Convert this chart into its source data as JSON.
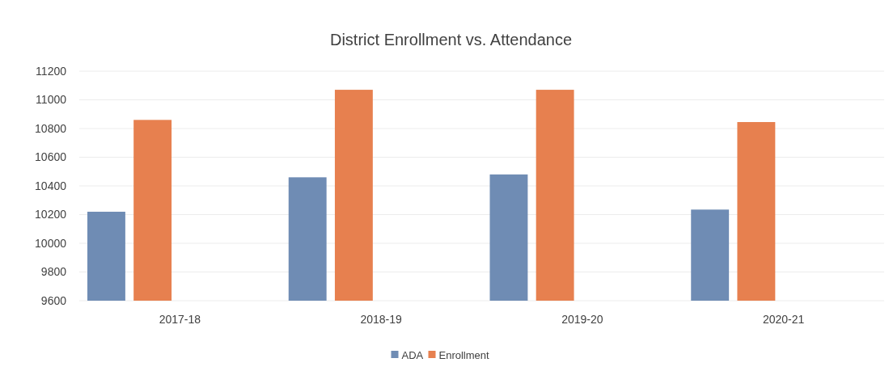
{
  "chart_data": {
    "type": "bar",
    "title": "District Enrollment vs. Attendance",
    "categories": [
      "2017-18",
      "2018-19",
      "2019-20",
      "2020-21"
    ],
    "series": [
      {
        "name": "ADA",
        "color": "#6f8cb4",
        "values": [
          10220,
          10460,
          10480,
          10235
        ]
      },
      {
        "name": "Enrollment",
        "color": "#e7804f",
        "values": [
          10860,
          11070,
          11070,
          10845
        ]
      }
    ],
    "ylim": [
      9600,
      11200
    ],
    "yticks": [
      9600,
      9800,
      10000,
      10200,
      10400,
      10600,
      10800,
      11000,
      11200
    ],
    "grid": "y",
    "legend": "bottom"
  }
}
